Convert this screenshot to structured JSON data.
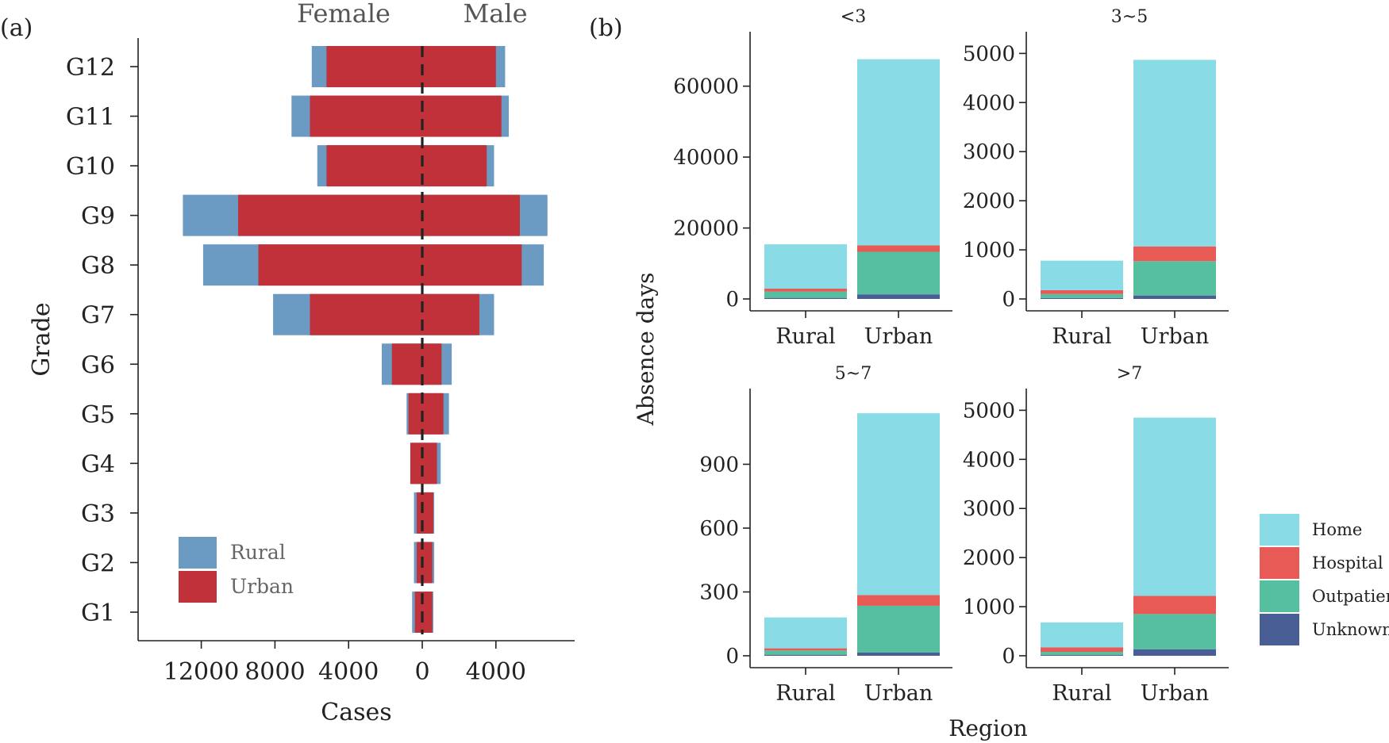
{
  "chart_data": [
    {
      "type": "bar",
      "orientation": "horizontal",
      "panel_label": "(a)",
      "categories": [
        "G1",
        "G2",
        "G3",
        "G4",
        "G5",
        "G6",
        "G7",
        "G8",
        "G9",
        "G10",
        "G11",
        "G12"
      ],
      "sides": [
        "Female",
        "Male"
      ],
      "series": [
        {
          "name": "Rural",
          "color": "#6b9bc3",
          "female": [
            550,
            450,
            450,
            600,
            850,
            2200,
            8100,
            11900,
            13000,
            5700,
            7100,
            6000
          ],
          "male": [
            600,
            650,
            650,
            1000,
            1450,
            1600,
            3900,
            6600,
            6800,
            3900,
            4700,
            4500
          ]
        },
        {
          "name": "Urban",
          "color": "#c1313a",
          "female": [
            400,
            300,
            300,
            650,
            750,
            1650,
            6100,
            8900,
            10000,
            5200,
            6100,
            5200
          ],
          "male": [
            550,
            550,
            600,
            800,
            1150,
            1050,
            3100,
            5400,
            5300,
            3500,
            4300,
            4000
          ]
        }
      ],
      "xlabel": "Cases",
      "ylabel": "Grade",
      "xticks": [
        "12000",
        "8000",
        "4000",
        "0",
        "4000"
      ],
      "xlim": [
        -15000,
        8500
      ],
      "legend": [
        "Rural",
        "Urban"
      ],
      "legend_position": "bottom-left",
      "center_line": "dashed"
    },
    {
      "type": "bar",
      "stacked": true,
      "panel_label": "(b)",
      "xlabel": "Region",
      "ylabel": "Absence days",
      "legend": [
        {
          "name": "Home",
          "color": "#89dce6"
        },
        {
          "name": "Hospital",
          "color": "#e85a55"
        },
        {
          "name": "Outpatient",
          "color": "#55bf9f"
        },
        {
          "name": "Unknown",
          "color": "#4a5e96"
        }
      ],
      "legend_position": "right",
      "panels": [
        {
          "title": "<3",
          "categories": [
            "Rural",
            "Urban"
          ],
          "ylim": [
            0,
            72000
          ],
          "yticks": [
            0,
            20000,
            40000,
            60000
          ],
          "stack": {
            "Unknown": [
              300,
              1300
            ],
            "Outpatient": [
              1800,
              12000
            ],
            "Hospital": [
              800,
              1800
            ],
            "Home": [
              12500,
              52500
            ]
          }
        },
        {
          "title": "3~5",
          "categories": [
            "Rural",
            "Urban"
          ],
          "ylim": [
            0,
            5200
          ],
          "yticks": [
            0,
            1000,
            2000,
            3000,
            4000,
            5000
          ],
          "stack": {
            "Unknown": [
              20,
              70
            ],
            "Outpatient": [
              80,
              700
            ],
            "Hospital": [
              80,
              300
            ],
            "Home": [
              600,
              3800
            ]
          }
        },
        {
          "title": "5~7",
          "categories": [
            "Rural",
            "Urban"
          ],
          "ylim": [
            0,
            1200
          ],
          "yticks": [
            0,
            300,
            600,
            900
          ],
          "stack": {
            "Unknown": [
              5,
              15
            ],
            "Outpatient": [
              20,
              220
            ],
            "Hospital": [
              10,
              50
            ],
            "Home": [
              145,
              855
            ]
          }
        },
        {
          "title": ">7",
          "categories": [
            "Rural",
            "Urban"
          ],
          "ylim": [
            0,
            5200
          ],
          "yticks": [
            0,
            1000,
            2000,
            3000,
            4000,
            5000
          ],
          "stack": {
            "Unknown": [
              20,
              130
            ],
            "Outpatient": [
              60,
              720
            ],
            "Hospital": [
              90,
              370
            ],
            "Home": [
              510,
              3630
            ]
          }
        }
      ]
    }
  ]
}
